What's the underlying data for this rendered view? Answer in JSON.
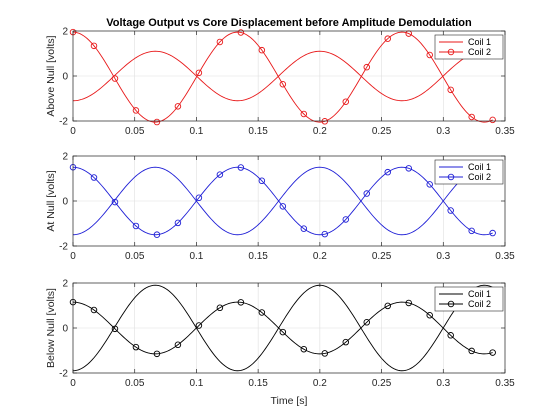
{
  "figure": {
    "title": "Voltage Output vs Core Displacement before Amplitude Demodulation",
    "xlabel": "Time [s]"
  },
  "chart_data": [
    {
      "type": "line",
      "ylabel": "Above Null [volts]",
      "color": "#e8191a",
      "xlim": [
        0,
        0.35
      ],
      "ylim": [
        -2,
        2
      ],
      "xticks": [
        "0",
        "0.05",
        "0.1",
        "0.15",
        "0.2",
        "0.25",
        "0.3",
        "0.35"
      ],
      "yticks": [
        "-2",
        "0",
        "2"
      ],
      "grid": true,
      "legend": "top-right",
      "x_range": [
        0,
        0.34
      ],
      "series": [
        {
          "name": "Coil 1",
          "marker": "none",
          "amplitude": 1.1,
          "offset": 0.0,
          "period": 0.1333,
          "phase": 3.1416
        },
        {
          "name": "Coil 2",
          "marker": "circle",
          "amplitude": 2.0,
          "offset": -0.05,
          "period": 0.1333,
          "phase": 0.0
        }
      ]
    },
    {
      "type": "line",
      "ylabel": "At Null [volts]",
      "color": "#1f1fd6",
      "xlim": [
        0,
        0.35
      ],
      "ylim": [
        -2,
        2
      ],
      "xticks": [
        "0",
        "0.05",
        "0.1",
        "0.15",
        "0.2",
        "0.25",
        "0.3",
        "0.35"
      ],
      "yticks": [
        "-2",
        "0",
        "2"
      ],
      "grid": true,
      "legend": "top-right",
      "x_range": [
        0,
        0.34
      ],
      "series": [
        {
          "name": "Coil 1",
          "marker": "none",
          "amplitude": 1.5,
          "offset": 0.0,
          "period": 0.1333,
          "phase": 3.1416
        },
        {
          "name": "Coil 2",
          "marker": "circle",
          "amplitude": 1.5,
          "offset": 0.0,
          "period": 0.1333,
          "phase": 0.0
        }
      ]
    },
    {
      "type": "line",
      "ylabel": "Below Null [volts]",
      "color": "#000000",
      "xlim": [
        0,
        0.35
      ],
      "ylim": [
        -2,
        2
      ],
      "xticks": [
        "0",
        "0.05",
        "0.1",
        "0.15",
        "0.2",
        "0.25",
        "0.3",
        "0.35"
      ],
      "yticks": [
        "-2",
        "0",
        "2"
      ],
      "grid": true,
      "legend": "top-right",
      "x_range": [
        0,
        0.34
      ],
      "series": [
        {
          "name": "Coil 1",
          "marker": "none",
          "amplitude": 1.9,
          "offset": 0.0,
          "period": 0.1333,
          "phase": 3.1416
        },
        {
          "name": "Coil 2",
          "marker": "circle",
          "amplitude": 1.15,
          "offset": 0.0,
          "period": 0.1333,
          "phase": 0.0
        }
      ]
    }
  ]
}
